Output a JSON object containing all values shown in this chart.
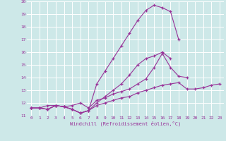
{
  "xlabel": "Windchill (Refroidissement éolien,°C)",
  "bg_color": "#cde8e8",
  "grid_color": "#b8d8d8",
  "line_color": "#993399",
  "xlim": [
    -0.5,
    23.5
  ],
  "ylim": [
    11,
    20
  ],
  "xticks": [
    0,
    1,
    2,
    3,
    4,
    5,
    6,
    7,
    8,
    9,
    10,
    11,
    12,
    13,
    14,
    15,
    16,
    17,
    18,
    19,
    20,
    21,
    22,
    23
  ],
  "yticks": [
    11,
    12,
    13,
    14,
    15,
    16,
    17,
    18,
    19,
    20
  ],
  "series": [
    [
      11.6,
      11.6,
      11.5,
      11.8,
      11.7,
      11.5,
      11.2,
      11.4,
      11.8,
      12.0,
      12.2,
      12.4,
      12.5,
      12.8,
      13.0,
      13.2,
      13.4,
      13.5,
      13.6,
      13.1,
      13.1,
      13.2,
      13.4,
      13.5
    ],
    [
      11.6,
      11.6,
      11.8,
      11.8,
      11.7,
      11.8,
      12.0,
      11.6,
      12.2,
      12.4,
      12.7,
      12.9,
      13.1,
      13.5,
      13.9,
      14.8,
      15.9,
      14.8,
      14.1,
      14.0,
      null,
      null,
      null,
      null
    ],
    [
      11.6,
      11.6,
      11.5,
      11.8,
      11.7,
      11.5,
      11.2,
      11.4,
      12.0,
      12.5,
      13.0,
      13.5,
      14.2,
      15.0,
      15.5,
      15.7,
      16.0,
      15.5,
      null,
      null,
      null,
      null,
      null,
      null
    ],
    [
      11.6,
      11.6,
      11.5,
      11.8,
      11.7,
      11.5,
      11.2,
      11.4,
      13.5,
      14.5,
      15.5,
      16.5,
      17.5,
      18.5,
      19.3,
      19.7,
      19.5,
      19.2,
      17.0,
      null,
      null,
      null,
      null,
      null
    ]
  ]
}
